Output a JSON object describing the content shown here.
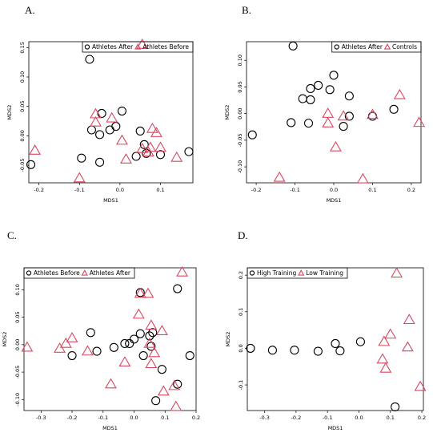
{
  "colors": {
    "circle": "#000000",
    "triangle": "#d9475f"
  },
  "chart_data": [
    {
      "type": "scatter",
      "panel_label": "A.",
      "xlabel": "MDS1",
      "ylabel": "MDS2",
      "xlim": [
        -0.225,
        0.18
      ],
      "ylim": [
        -0.08,
        0.16
      ],
      "xticks": [
        {
          "v": -0.2,
          "t": "-0.2"
        },
        {
          "v": -0.1,
          "t": "-0.1"
        },
        {
          "v": 0.0,
          "t": "0.0"
        },
        {
          "v": 0.1,
          "t": "0.1"
        }
      ],
      "yticks": [
        {
          "v": -0.05,
          "t": "-0.05"
        },
        {
          "v": 0.0,
          "t": "0.00"
        },
        {
          "v": 0.05,
          "t": "0.05"
        },
        {
          "v": 0.1,
          "t": "0.10"
        },
        {
          "v": 0.15,
          "t": "0.15"
        }
      ],
      "legend": "top-right",
      "grid": false,
      "series": [
        {
          "name": "Athletes After",
          "marker": "circle",
          "points": [
            [
              -0.075,
              0.13
            ],
            [
              -0.045,
              0.038
            ],
            [
              -0.07,
              0.01
            ],
            [
              -0.05,
              0.002
            ],
            [
              -0.025,
              0.01
            ],
            [
              -0.01,
              0.016
            ],
            [
              0.005,
              0.042
            ],
            [
              0.05,
              0.008
            ],
            [
              0.06,
              -0.015
            ],
            [
              0.04,
              -0.035
            ],
            [
              0.065,
              -0.03
            ],
            [
              0.1,
              -0.032
            ],
            [
              0.17,
              -0.027
            ],
            [
              -0.22,
              -0.049
            ],
            [
              -0.095,
              -0.038
            ],
            [
              -0.05,
              -0.045
            ]
          ]
        },
        {
          "name": "Athletes Before",
          "marker": "triangle",
          "points": [
            [
              0.055,
              0.155
            ],
            [
              -0.06,
              0.037
            ],
            [
              -0.06,
              0.023
            ],
            [
              -0.02,
              0.03
            ],
            [
              0.08,
              0.012
            ],
            [
              0.09,
              0.005
            ],
            [
              0.005,
              -0.008
            ],
            [
              0.055,
              -0.022
            ],
            [
              0.075,
              -0.02
            ],
            [
              0.1,
              -0.02
            ],
            [
              0.07,
              -0.028
            ],
            [
              0.14,
              -0.037
            ],
            [
              0.015,
              -0.04
            ],
            [
              -0.21,
              -0.025
            ],
            [
              -0.1,
              -0.072
            ]
          ]
        }
      ]
    },
    {
      "type": "scatter",
      "panel_label": "B.",
      "xlabel": "MDS1",
      "ylabel": "MDS2",
      "xlim": [
        -0.225,
        0.225
      ],
      "ylim": [
        -0.13,
        0.135
      ],
      "xticks": [
        {
          "v": -0.2,
          "t": "-0.2"
        },
        {
          "v": -0.1,
          "t": "-0.1"
        },
        {
          "v": 0.0,
          "t": "0.0"
        },
        {
          "v": 0.1,
          "t": "0.1"
        },
        {
          "v": 0.2,
          "t": "0.2"
        }
      ],
      "yticks": [
        {
          "v": -0.1,
          "t": "-0.10"
        },
        {
          "v": -0.05,
          "t": "-0.05"
        },
        {
          "v": 0.0,
          "t": "0.00"
        },
        {
          "v": 0.05,
          "t": "0.05"
        },
        {
          "v": 0.1,
          "t": "0.10"
        }
      ],
      "legend": "top-right",
      "grid": false,
      "series": [
        {
          "name": "Athletes After",
          "marker": "circle",
          "points": [
            [
              -0.105,
              0.127
            ],
            [
              0.0,
              0.072
            ],
            [
              -0.04,
              0.053
            ],
            [
              -0.06,
              0.047
            ],
            [
              -0.01,
              0.045
            ],
            [
              -0.08,
              0.028
            ],
            [
              -0.06,
              0.026
            ],
            [
              0.04,
              0.033
            ],
            [
              -0.11,
              -0.017
            ],
            [
              -0.065,
              -0.018
            ],
            [
              0.025,
              -0.024
            ],
            [
              0.04,
              -0.005
            ],
            [
              0.1,
              -0.005
            ],
            [
              0.155,
              0.008
            ],
            [
              -0.21,
              -0.04
            ]
          ]
        },
        {
          "name": "Controls",
          "marker": "triangle",
          "points": [
            [
              0.17,
              0.035
            ],
            [
              -0.015,
              0.0
            ],
            [
              0.025,
              -0.005
            ],
            [
              0.1,
              -0.002
            ],
            [
              -0.015,
              -0.018
            ],
            [
              0.22,
              -0.017
            ],
            [
              0.005,
              -0.063
            ],
            [
              -0.14,
              -0.12
            ],
            [
              0.075,
              -0.123
            ]
          ]
        }
      ]
    },
    {
      "type": "scatter",
      "panel_label": "C.",
      "xlabel": "MDS1",
      "ylabel": "MDS2",
      "xlim": [
        -0.355,
        0.2
      ],
      "ylim": [
        -0.12,
        0.14
      ],
      "xticks": [
        {
          "v": -0.3,
          "t": "-0.3"
        },
        {
          "v": -0.2,
          "t": "-0.2"
        },
        {
          "v": -0.1,
          "t": "-0.1"
        },
        {
          "v": 0.0,
          "t": "0.0"
        },
        {
          "v": 0.1,
          "t": "0.1"
        },
        {
          "v": 0.2,
          "t": "0.2"
        }
      ],
      "yticks": [
        {
          "v": -0.1,
          "t": "-0.10"
        },
        {
          "v": -0.05,
          "t": "-0.05"
        },
        {
          "v": 0.0,
          "t": "0.00"
        },
        {
          "v": 0.05,
          "t": "0.05"
        },
        {
          "v": 0.1,
          "t": "0.10"
        }
      ],
      "legend": "top-left",
      "grid": false,
      "series": [
        {
          "name": "Athletes Before",
          "marker": "circle",
          "points": [
            [
              0.02,
              0.095
            ],
            [
              0.14,
              0.102
            ],
            [
              -0.14,
              0.022
            ],
            [
              0.02,
              0.02
            ],
            [
              0.06,
              0.022
            ],
            [
              0.05,
              0.016
            ],
            [
              0.0,
              0.01
            ],
            [
              -0.03,
              0.002
            ],
            [
              -0.015,
              0.002
            ],
            [
              -0.065,
              -0.005
            ],
            [
              0.055,
              -0.003
            ],
            [
              -0.12,
              -0.012
            ],
            [
              -0.2,
              -0.02
            ],
            [
              0.03,
              -0.02
            ],
            [
              0.18,
              -0.02
            ],
            [
              0.09,
              -0.045
            ],
            [
              0.14,
              -0.072
            ],
            [
              0.07,
              -0.102
            ]
          ]
        },
        {
          "name": "Athletes After",
          "marker": "triangle",
          "points": [
            [
              0.155,
              0.132
            ],
            [
              0.02,
              0.093
            ],
            [
              0.045,
              0.093
            ],
            [
              0.015,
              0.055
            ],
            [
              0.055,
              0.035
            ],
            [
              0.09,
              0.025
            ],
            [
              -0.2,
              0.012
            ],
            [
              -0.22,
              0.002
            ],
            [
              -0.24,
              -0.007
            ],
            [
              0.05,
              0.002
            ],
            [
              -0.15,
              -0.012
            ],
            [
              0.065,
              -0.015
            ],
            [
              -0.345,
              -0.005
            ],
            [
              -0.03,
              -0.032
            ],
            [
              0.055,
              -0.035
            ],
            [
              0.13,
              -0.075
            ],
            [
              -0.075,
              -0.072
            ],
            [
              0.095,
              -0.085
            ],
            [
              0.135,
              -0.113
            ]
          ]
        }
      ]
    },
    {
      "type": "scatter",
      "panel_label": "D.",
      "xlabel": "MDS1",
      "ylabel": "MDS2",
      "xlim": [
        -0.355,
        0.205
      ],
      "ylim": [
        -0.17,
        0.22
      ],
      "xticks": [
        {
          "v": -0.3,
          "t": "-0.3"
        },
        {
          "v": -0.2,
          "t": "-0.2"
        },
        {
          "v": -0.1,
          "t": "-0.1"
        },
        {
          "v": 0.0,
          "t": "0.0"
        },
        {
          "v": 0.1,
          "t": "0.1"
        },
        {
          "v": 0.2,
          "t": "0.2"
        }
      ],
      "yticks": [
        {
          "v": -0.1,
          "t": "-0.1"
        },
        {
          "v": 0.0,
          "t": "0.0"
        },
        {
          "v": 0.1,
          "t": "0.1"
        },
        {
          "v": 0.2,
          "t": "0.2"
        }
      ],
      "legend": "top-left",
      "grid": false,
      "series": [
        {
          "name": "High Training",
          "marker": "circle",
          "points": [
            [
              -0.345,
              0.0
            ],
            [
              -0.275,
              -0.005
            ],
            [
              -0.205,
              -0.005
            ],
            [
              -0.13,
              -0.008
            ],
            [
              -0.075,
              0.013
            ],
            [
              -0.06,
              -0.007
            ],
            [
              0.005,
              0.018
            ],
            [
              0.115,
              -0.16
            ]
          ]
        },
        {
          "name": "Low Training",
          "marker": "triangle",
          "points": [
            [
              0.12,
              0.205
            ],
            [
              0.16,
              0.078
            ],
            [
              0.1,
              0.038
            ],
            [
              0.08,
              0.018
            ],
            [
              0.155,
              0.003
            ],
            [
              0.075,
              -0.03
            ],
            [
              0.085,
              -0.055
            ],
            [
              0.195,
              -0.105
            ]
          ]
        }
      ]
    }
  ]
}
